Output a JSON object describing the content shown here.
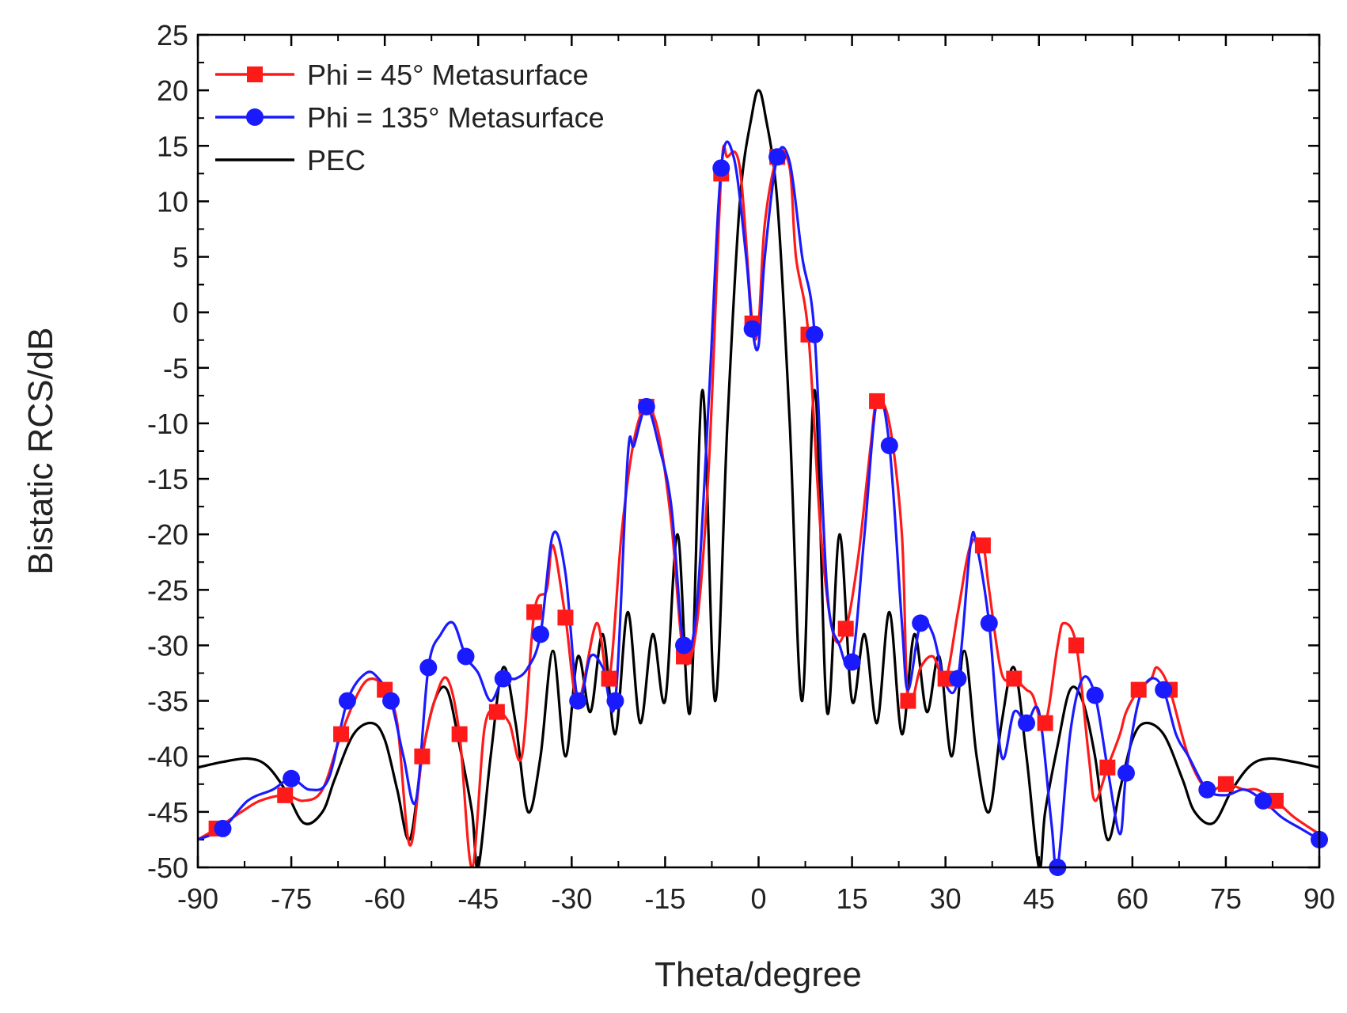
{
  "chart_data": {
    "type": "line",
    "title": "",
    "xlabel": "Theta/degree",
    "ylabel": "Bistatic RCS/dB",
    "xlim": [
      -90,
      90
    ],
    "ylim": [
      -50,
      25
    ],
    "xticks": [
      -90,
      -75,
      -60,
      -45,
      -30,
      -15,
      0,
      15,
      30,
      45,
      60,
      75,
      90
    ],
    "yticks": [
      25,
      20,
      15,
      10,
      5,
      0,
      -5,
      -10,
      -15,
      -20,
      -25,
      -30,
      -35,
      -40,
      -45,
      -50
    ],
    "legend_position": "top-left",
    "series": [
      {
        "name": "Phi = 45° Metasurface",
        "color": "#ff1a1a",
        "marker": "square",
        "x": [
          -90,
          -87,
          -83,
          -80,
          -76,
          -73,
          -70,
          -67,
          -64,
          -62,
          -60,
          -58,
          -56,
          -54,
          -52,
          -50,
          -48,
          -46,
          -44,
          -42,
          -40,
          -38,
          -36,
          -34,
          -33,
          -31,
          -29,
          -26,
          -24,
          -22,
          -20,
          -18,
          -16,
          -14,
          -12,
          -10,
          -8,
          -6,
          -5,
          -3,
          -1,
          0,
          1,
          3,
          5,
          6,
          8,
          10,
          12,
          14,
          16,
          18,
          19,
          21,
          23,
          24,
          26,
          28,
          30,
          32,
          34,
          36,
          37,
          39,
          41,
          43,
          44,
          46,
          48,
          49,
          51,
          53,
          54,
          56,
          58,
          59,
          61,
          63,
          64,
          66,
          69,
          72,
          75,
          78,
          80,
          83,
          86,
          90
        ],
        "y": [
          -47.5,
          -46.5,
          -45,
          -44,
          -43.5,
          -44,
          -43,
          -38,
          -34,
          -33,
          -34,
          -37,
          -48,
          -40,
          -35,
          -33,
          -38,
          -50,
          -37.5,
          -36,
          -37,
          -40,
          -27,
          -25,
          -21,
          -27.5,
          -35,
          -28,
          -33,
          -20,
          -11.5,
          -8.5,
          -11,
          -19,
          -31,
          -28.5,
          -14,
          12.5,
          14,
          13,
          -1,
          -1,
          8,
          14,
          13,
          5,
          -2,
          -20,
          -29,
          -28.5,
          -22,
          -12,
          -8,
          -10,
          -20,
          -35,
          -32,
          -31,
          -33,
          -27,
          -21,
          -21,
          -25,
          -32.5,
          -33,
          -34,
          -34.5,
          -37,
          -30,
          -28,
          -30,
          -40,
          -44,
          -41,
          -38,
          -36,
          -34,
          -33,
          -32,
          -34,
          -40,
          -43,
          -42.5,
          -43,
          -43,
          -44,
          -45.5,
          -47
        ]
      },
      {
        "name": "Phi = 135° Metasurface",
        "color": "#1a1aff",
        "marker": "circle",
        "x": [
          -90,
          -86,
          -82,
          -78,
          -75,
          -72,
          -69,
          -66,
          -63,
          -61,
          -59,
          -57,
          -55,
          -53,
          -51,
          -49,
          -47,
          -45,
          -43,
          -41,
          -39,
          -37,
          -35,
          -33,
          -31,
          -29,
          -27,
          -25,
          -23,
          -21,
          -20,
          -18,
          -16,
          -14,
          -12,
          -10,
          -8,
          -6,
          -4,
          -2,
          -1,
          0,
          1,
          3,
          5,
          7,
          9,
          11,
          13,
          15,
          17,
          19,
          21,
          23,
          24,
          26,
          28,
          30,
          32,
          34,
          35,
          37,
          39,
          41,
          43,
          45,
          47,
          48,
          50,
          52,
          54,
          56,
          58,
          59,
          61,
          63,
          65,
          67,
          69,
          72,
          75,
          78,
          81,
          84,
          87,
          90
        ],
        "y": [
          -47.5,
          -46.5,
          -44,
          -43,
          -42,
          -43,
          -42,
          -35,
          -32.5,
          -33,
          -35,
          -40,
          -44,
          -32,
          -29,
          -28,
          -31,
          -32.5,
          -35,
          -33,
          -33,
          -32,
          -29,
          -20,
          -23.5,
          -35,
          -31,
          -32,
          -35,
          -13,
          -12,
          -8.5,
          -12,
          -17.5,
          -30,
          -27,
          -8,
          13,
          14,
          5,
          -1.5,
          -3,
          5,
          14,
          13.5,
          5,
          -2,
          -25,
          -30,
          -31.5,
          -20,
          -8,
          -12,
          -28,
          -34,
          -28,
          -29,
          -33.5,
          -33,
          -21,
          -21,
          -28,
          -40,
          -36,
          -37,
          -36,
          -46,
          -50,
          -38,
          -33,
          -34.5,
          -41,
          -47,
          -41.5,
          -35,
          -33,
          -34,
          -38,
          -40,
          -43,
          -43.5,
          -43,
          -44,
          -45.5,
          -46.5,
          -47.5
        ]
      },
      {
        "name": "PEC",
        "color": "#000000",
        "marker": "none",
        "x": [
          -90,
          -86,
          -82,
          -79,
          -76,
          -73,
          -70,
          -68,
          -65,
          -62,
          -60,
          -58,
          -56,
          -54,
          -52,
          -50,
          -48,
          -46,
          -45,
          -43,
          -41,
          -39,
          -37,
          -35,
          -33,
          -31,
          -29,
          -27,
          -25,
          -23,
          -21,
          -19,
          -17,
          -15,
          -13,
          -11,
          -9,
          -7,
          -5,
          -3,
          -1,
          0,
          1,
          3,
          5,
          7,
          9,
          11,
          13,
          15,
          17,
          19,
          21,
          23,
          25,
          27,
          29,
          31,
          33,
          35,
          37,
          39,
          41,
          43,
          45,
          46,
          48,
          50,
          52,
          54,
          56,
          58,
          60,
          62,
          65,
          68,
          70,
          73,
          76,
          79,
          82,
          86,
          90
        ],
        "y": [
          -41,
          -40.5,
          -40.2,
          -40.8,
          -43,
          -46,
          -45,
          -42,
          -38,
          -37,
          -38.5,
          -43,
          -47.5,
          -40,
          -35,
          -34,
          -39,
          -45,
          -50,
          -40,
          -32,
          -37,
          -45,
          -40,
          -30.5,
          -40,
          -31,
          -36,
          -29,
          -38,
          -27,
          -37,
          -29,
          -35,
          -20,
          -36,
          -7,
          -35,
          -10,
          10,
          18,
          20,
          18,
          10,
          -10,
          -35,
          -7,
          -36,
          -20,
          -35,
          -29,
          -37,
          -27,
          -38,
          -29,
          -36,
          -31,
          -40,
          -30.5,
          -40,
          -45,
          -37,
          -32,
          -40,
          -50,
          -45,
          -39,
          -34,
          -35,
          -40,
          -47.5,
          -43,
          -38.5,
          -37,
          -38,
          -42,
          -45,
          -46,
          -43,
          -40.8,
          -40.2,
          -40.5,
          -41
        ]
      }
    ]
  }
}
